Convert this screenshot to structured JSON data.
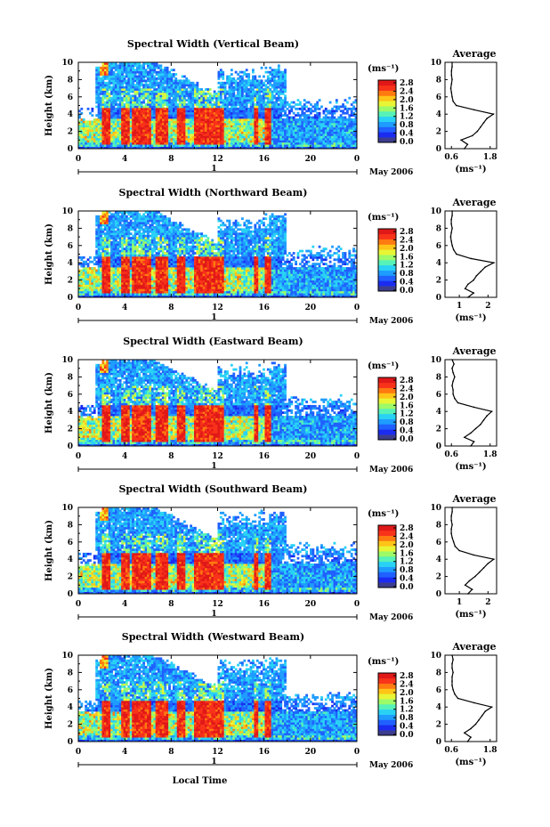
{
  "figure": {
    "xlabel": "Local Time",
    "date_label": "May 2006",
    "day_label": "1"
  },
  "colorbar": {
    "unit": "(ms⁻¹)",
    "tick_labels": [
      "0.0",
      "0.4",
      "0.8",
      "1.2",
      "1.6",
      "2.0",
      "2.4",
      "2.8"
    ],
    "colors": [
      "#3d3d8f",
      "#1b2cf0",
      "#2060ff",
      "#1f9cff",
      "#29d2f5",
      "#56f2b8",
      "#9dfa68",
      "#e8f535",
      "#ffc418",
      "#ff7a10",
      "#f8331a",
      "#e01818"
    ],
    "range": [
      0.0,
      3.0
    ]
  },
  "chart_data": [
    {
      "type": "heatmap",
      "title": "Spectral Width (Vertical Beam)",
      "ylabel": "Height (km)",
      "xlim": [
        0,
        24
      ],
      "ylim": [
        0,
        10
      ],
      "xticks": [
        "0",
        "4",
        "8",
        "12",
        "16",
        "20",
        "0"
      ],
      "yticks": [
        "0",
        "2",
        "4",
        "6",
        "8",
        "10"
      ],
      "colorbar_ticks": [
        "0.0",
        "0.4",
        "0.8",
        "1.2",
        "1.6",
        "2.0",
        "2.4",
        "2.8"
      ],
      "profile": {
        "type": "line",
        "title": "Average",
        "xticks": [
          "0.6",
          "1.8"
        ],
        "xlim": [
          0.4,
          2.0
        ],
        "xlabel": "(ms⁻¹)",
        "y": [
          0,
          0.5,
          1,
          1.5,
          2,
          2.5,
          3,
          3.5,
          4,
          4.5,
          5,
          5.5,
          6,
          6.5,
          7,
          7.5,
          8,
          8.5,
          9,
          9.5,
          10
        ],
        "x": [
          1.0,
          1.1,
          0.9,
          1.25,
          1.4,
          1.5,
          1.6,
          1.7,
          1.9,
          1.3,
          0.75,
          0.65,
          0.62,
          0.6,
          0.58,
          0.6,
          0.62,
          0.6,
          0.6,
          0.62,
          0.62
        ]
      }
    },
    {
      "type": "heatmap",
      "title": "Spectral Width (Northward Beam)",
      "ylabel": "Height (km)",
      "xlim": [
        0,
        24
      ],
      "ylim": [
        0,
        10
      ],
      "xticks": [
        "0",
        "4",
        "8",
        "12",
        "16",
        "20",
        "0"
      ],
      "yticks": [
        "0",
        "2",
        "4",
        "6",
        "8",
        "10"
      ],
      "colorbar_ticks": [
        "0.0",
        "0.4",
        "0.8",
        "1.2",
        "1.6",
        "2.0",
        "2.4",
        "2.8"
      ],
      "profile": {
        "type": "line",
        "title": "Average",
        "xticks": [
          "1",
          "2"
        ],
        "xlim": [
          0.5,
          2.3
        ],
        "xlabel": "(ms⁻¹)",
        "y": [
          0,
          0.5,
          1,
          1.5,
          2,
          2.5,
          3,
          3.5,
          4,
          4.5,
          5,
          5.5,
          6,
          6.5,
          7,
          7.5,
          8,
          8.5,
          9,
          9.5,
          10
        ],
        "x": [
          1.3,
          1.5,
          1.2,
          1.3,
          1.5,
          1.6,
          1.75,
          1.9,
          2.2,
          1.4,
          0.9,
          0.8,
          0.75,
          0.72,
          0.7,
          0.72,
          0.75,
          0.72,
          0.72,
          0.75,
          0.75
        ]
      }
    },
    {
      "type": "heatmap",
      "title": "Spectral Width (Eastward Beam)",
      "ylabel": "Height (km)",
      "xlim": [
        0,
        24
      ],
      "ylim": [
        0,
        10
      ],
      "xticks": [
        "0",
        "4",
        "8",
        "12",
        "16",
        "20",
        "0"
      ],
      "yticks": [
        "0",
        "2",
        "4",
        "6",
        "8",
        "10"
      ],
      "colorbar_ticks": [
        "0.0",
        "0.4",
        "0.8",
        "1.2",
        "1.6",
        "2.0",
        "2.4",
        "2.8"
      ],
      "profile": {
        "type": "line",
        "title": "Average",
        "xticks": [
          "0.6",
          "1.8"
        ],
        "xlim": [
          0.4,
          2.0
        ],
        "xlabel": "(ms⁻¹)",
        "y": [
          0,
          0.5,
          1,
          1.5,
          2,
          2.5,
          3,
          3.5,
          4,
          4.5,
          5,
          5.5,
          6,
          6.5,
          7,
          7.5,
          8,
          8.5,
          9,
          9.5,
          10
        ],
        "x": [
          1.2,
          1.3,
          1.0,
          1.2,
          1.35,
          1.5,
          1.6,
          1.7,
          1.85,
          1.3,
          0.8,
          0.7,
          0.65,
          0.65,
          0.62,
          0.65,
          0.7,
          0.65,
          0.62,
          0.68,
          0.62
        ]
      }
    },
    {
      "type": "heatmap",
      "title": "Spectral Width (Southward Beam)",
      "ylabel": "Height (km)",
      "xlim": [
        0,
        24
      ],
      "ylim": [
        0,
        10
      ],
      "xticks": [
        "0",
        "4",
        "8",
        "12",
        "16",
        "20",
        "0"
      ],
      "yticks": [
        "0",
        "2",
        "4",
        "6",
        "8",
        "10"
      ],
      "colorbar_ticks": [
        "0.0",
        "0.4",
        "0.8",
        "1.2",
        "1.6",
        "2.0",
        "2.4",
        "2.8"
      ],
      "profile": {
        "type": "line",
        "title": "Average",
        "xticks": [
          "1",
          "2"
        ],
        "xlim": [
          0.5,
          2.3
        ],
        "xlabel": "(ms⁻¹)",
        "y": [
          0,
          0.5,
          1,
          1.5,
          2,
          2.5,
          3,
          3.5,
          4,
          4.5,
          5,
          5.5,
          6,
          6.5,
          7,
          7.5,
          8,
          8.5,
          9,
          9.5,
          10
        ],
        "x": [
          1.3,
          1.45,
          1.2,
          1.35,
          1.55,
          1.7,
          1.85,
          2.0,
          2.2,
          1.5,
          1.0,
          0.85,
          0.8,
          0.75,
          0.72,
          0.72,
          0.75,
          0.72,
          0.72,
          0.75,
          0.75
        ]
      }
    },
    {
      "type": "heatmap",
      "title": "Spectral Width (Westward Beam)",
      "ylabel": "Height (km)",
      "xlim": [
        0,
        24
      ],
      "ylim": [
        0,
        10
      ],
      "xticks": [
        "0",
        "4",
        "8",
        "12",
        "16",
        "20",
        "0"
      ],
      "yticks": [
        "0",
        "2",
        "4",
        "6",
        "8",
        "10"
      ],
      "colorbar_ticks": [
        "0.0",
        "0.4",
        "0.8",
        "1.2",
        "1.6",
        "2.0",
        "2.4",
        "2.8"
      ],
      "profile": {
        "type": "line",
        "title": "Average",
        "xticks": [
          "0.6",
          "1.8"
        ],
        "xlim": [
          0.4,
          2.0
        ],
        "xlabel": "(ms⁻¹)",
        "y": [
          0,
          0.5,
          1,
          1.5,
          2,
          2.5,
          3,
          3.5,
          4,
          4.5,
          5,
          5.5,
          6,
          6.5,
          7,
          7.5,
          8,
          8.5,
          9,
          9.5,
          10
        ],
        "x": [
          1.1,
          1.2,
          1.0,
          1.2,
          1.35,
          1.45,
          1.55,
          1.65,
          1.85,
          1.3,
          0.8,
          0.7,
          0.65,
          0.62,
          0.62,
          0.62,
          0.65,
          0.62,
          0.62,
          0.65,
          0.62
        ]
      }
    }
  ]
}
